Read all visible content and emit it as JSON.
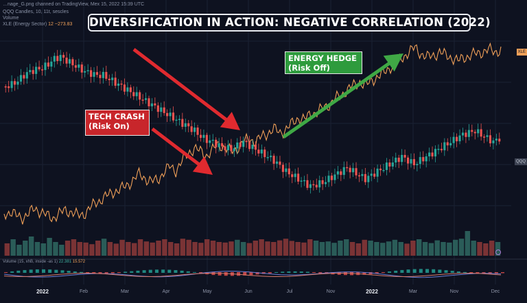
{
  "header": {
    "line1": "…nage_G.png channed on TradingView, Mex 15, 2022 15:39 UTC",
    "line2": "QQQ Candles, 10, 11t, sescles",
    "line3": "Volume",
    "line4_name": "XLE (Energy Sector)",
    "line4_value": "12 ~273.83"
  },
  "title": "DIVERSIFICATION IN ACTION: NEGATIVE CORRELATION (2022)",
  "callouts": {
    "tech_line1": "TECH CRASH",
    "tech_line2": "(Risk On)",
    "energy_line1": "ENERGY HEDGE",
    "energy_line2": "(Risk Off)"
  },
  "right_tags": {
    "xle": "XLE",
    "qqq": "QQQ"
  },
  "volume_row": {
    "text": "Volume (15, xhB, inside -as 1)",
    "v1": "22.381",
    "v2": "15.572"
  },
  "colors": {
    "background": "#0e1220",
    "up_candle": "#26a69a",
    "down_candle": "#ef5350",
    "xle_line": "#f0a058",
    "red_arrow": "#e02a2f",
    "green_arrow": "#3fa845",
    "volume_bar": "#8d3a3a"
  },
  "chart_data": {
    "type": "line",
    "x_labels": [
      "2022",
      "Feb",
      "Mar",
      "Apr",
      "May",
      "Jun",
      "Jul",
      "Nov",
      "2022",
      "Mar",
      "Nov",
      "Dec"
    ],
    "bold_labels": [
      "2022"
    ],
    "series": [
      {
        "name": "QQQ",
        "style": "candlestick",
        "values": [
          0.7,
          0.71,
          0.73,
          0.76,
          0.78,
          0.79,
          0.8,
          0.82,
          0.85,
          0.86,
          0.84,
          0.82,
          0.8,
          0.78,
          0.77,
          0.76,
          0.76,
          0.74,
          0.72,
          0.7,
          0.68,
          0.66,
          0.64,
          0.62,
          0.6,
          0.58,
          0.56,
          0.54,
          0.52,
          0.5,
          0.48,
          0.46,
          0.43,
          0.41,
          0.4,
          0.38,
          0.37,
          0.36,
          0.38,
          0.4,
          0.38,
          0.36,
          0.34,
          0.32,
          0.3,
          0.27,
          0.24,
          0.22,
          0.2,
          0.18,
          0.16,
          0.17,
          0.18,
          0.2,
          0.22,
          0.24,
          0.26,
          0.24,
          0.22,
          0.2,
          0.22,
          0.24,
          0.26,
          0.28,
          0.3,
          0.32,
          0.3,
          0.28,
          0.3,
          0.32,
          0.34,
          0.36,
          0.38,
          0.4,
          0.42,
          0.44,
          0.45,
          0.46,
          0.44,
          0.42,
          0.4,
          0.42
        ]
      },
      {
        "name": "XLE",
        "style": "line",
        "values": [
          0.12,
          0.13,
          0.11,
          0.1,
          0.12,
          0.15,
          0.13,
          0.11,
          0.1,
          0.12,
          0.14,
          0.13,
          0.11,
          0.12,
          0.15,
          0.18,
          0.2,
          0.22,
          0.24,
          0.25,
          0.27,
          0.3,
          0.33,
          0.31,
          0.29,
          0.3,
          0.34,
          0.37,
          0.35,
          0.4,
          0.44,
          0.47,
          0.45,
          0.43,
          0.46,
          0.49,
          0.47,
          0.45,
          0.47,
          0.5,
          0.52,
          0.5,
          0.53,
          0.55,
          0.57,
          0.55,
          0.57,
          0.6,
          0.63,
          0.62,
          0.65,
          0.66,
          0.68,
          0.7,
          0.73,
          0.75,
          0.78,
          0.8,
          0.82,
          0.8,
          0.83,
          0.85,
          0.87,
          0.9,
          0.92,
          0.95,
          0.98,
          1.0,
          0.97,
          0.95,
          0.96,
          0.98,
          0.96,
          0.95,
          0.93,
          0.95,
          0.96,
          0.97,
          0.98,
          0.99,
          0.98,
          0.99
        ]
      }
    ],
    "volume": [
      0.45,
      0.6,
      0.4,
      0.55,
      0.7,
      0.5,
      0.45,
      0.65,
      0.5,
      0.4,
      0.55,
      0.6,
      0.5,
      0.48,
      0.42,
      0.55,
      0.62,
      0.5,
      0.44,
      0.58,
      0.5,
      0.46,
      0.6,
      0.52,
      0.48,
      0.55,
      0.6,
      0.5,
      0.45,
      0.62,
      0.58,
      0.5,
      0.47,
      0.6,
      0.55,
      0.5,
      0.48,
      0.52,
      0.58,
      0.5,
      0.46,
      0.55,
      0.6,
      0.52,
      0.5,
      0.56,
      0.62,
      0.54,
      0.5,
      0.48,
      0.6,
      0.55,
      0.5,
      0.52,
      0.47,
      0.55,
      0.6,
      0.5,
      0.45,
      0.58,
      0.55,
      0.5,
      0.47,
      0.52,
      0.58,
      0.5,
      0.44,
      0.55,
      0.6,
      0.5,
      0.46,
      0.56,
      0.5,
      0.48,
      0.58,
      0.62,
      0.9,
      0.55,
      0.5,
      0.45,
      0.55,
      0.5
    ]
  }
}
